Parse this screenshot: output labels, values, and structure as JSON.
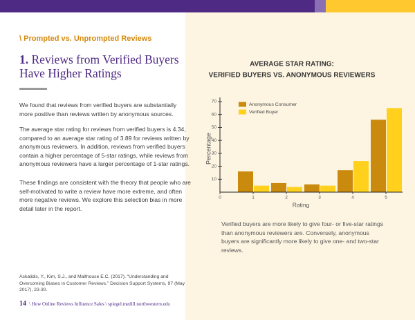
{
  "section_label": "\\ Prompted vs. Unprompted Reviews",
  "heading": {
    "number": "1.",
    "lines": [
      "Reviews from Verified Buyers",
      "Have Higher Ratings"
    ]
  },
  "paragraphs": [
    "We found that reviews from verified buyers are substantially more positive than reviews written by anonymous sources.",
    "The average star rating for reviews from verified buyers is 4.34, compared to an average star rating of 3.89 for reviews written by anonymous reviewers. In addition, reviews from verified buyers contain a higher percentage of 5-star ratings, while reviews from anonymous reviewers have a larger percentage of 1-star ratings.",
    "These findings are consistent with the theory that people who are self-motivated to write a review have more extreme, and often more negative reviews. We explore this selection bias in more detail later in the report."
  ],
  "footnote": "Askalidis, Y., Kim, S.J., and Malthouse E.C. (2017), “Understanding and Overcoming Biases in Customer Reviews.” Decision Support Systems, 97 (May 2017), 23-30.",
  "footer": {
    "page": "14",
    "text": "\\ How Online Reviews Influence Sales \\ spiegel.medill.northwestern.edu"
  },
  "chart_data": {
    "type": "bar",
    "title": "AVERAGE STAR RATING:",
    "subtitle": "VERIFIED BUYERS VS. ANONYMOUS REVIEWERS",
    "x_label": "Rating",
    "y_label": "Percentage",
    "x": [
      1,
      2,
      3,
      4,
      5
    ],
    "xlim": [
      0,
      5.5
    ],
    "xticks": [
      0,
      1,
      2,
      3,
      4,
      5
    ],
    "ylim": [
      0,
      70
    ],
    "yticks": [
      10,
      20,
      30,
      40,
      50,
      60,
      70
    ],
    "series": [
      {
        "name": "Anonymous Consumer",
        "color": "#c98a0e",
        "values": [
          16,
          7,
          6,
          17,
          56
        ]
      },
      {
        "name": "Verified Buyer",
        "color": "#ffd11c",
        "values": [
          5,
          4,
          5,
          24,
          65
        ]
      }
    ],
    "caption": "Verified buyers are more likely to give four- or five-star ratings than anonymous reviewers are. Conversely, anonymous buyers are significantly more likely to give one- and two-star reviews."
  }
}
